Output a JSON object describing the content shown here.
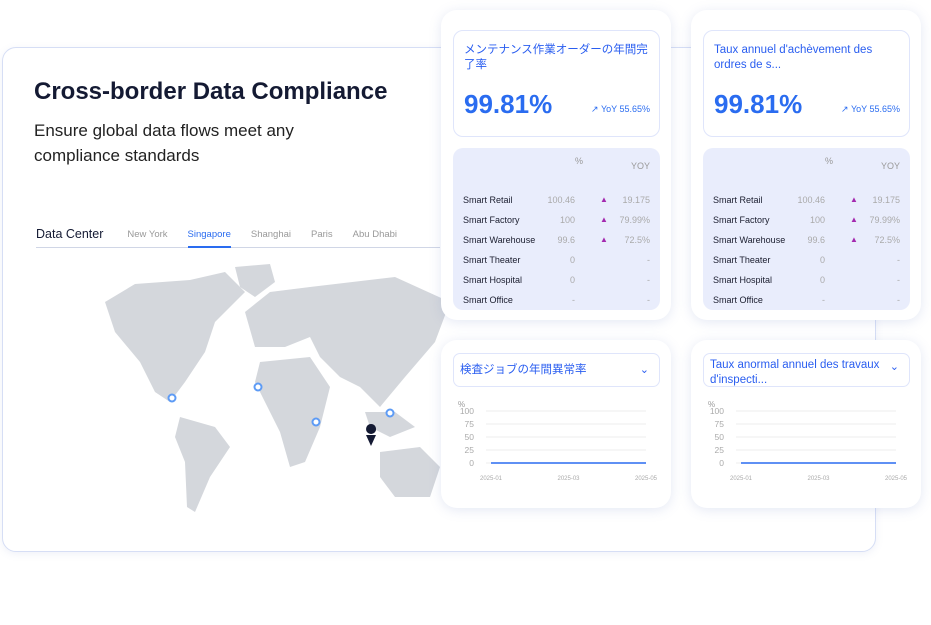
{
  "hero": {
    "title": "Cross-border Data Compliance",
    "subtitle": "Ensure global data flows meet any compliance standards"
  },
  "tabs": {
    "heading": "Data Center",
    "items": [
      "New York",
      "Singapore",
      "Shanghai",
      "Paris",
      "Abu Dhabi"
    ],
    "active": "Singapore"
  },
  "colors": {
    "accent": "#2a6cf0",
    "up_arrow": "#a42aaf",
    "map": "#d4d7dc"
  },
  "kpi_cards": [
    {
      "title": "メンテナンス作業オーダーの年間完了率",
      "value": "99.81%",
      "yoy": "YoY 55.65%",
      "col_pct": "%",
      "col_yoy": "YOY",
      "rows": [
        {
          "name": "Smart Retail",
          "pct": "100.46",
          "up": true,
          "yoy": "19.175"
        },
        {
          "name": "Smart Factory",
          "pct": "100",
          "up": true,
          "yoy": "79.99%"
        },
        {
          "name": "Smart Warehouse",
          "pct": "99.6",
          "up": true,
          "yoy": "72.5%"
        },
        {
          "name": "Smart Theater",
          "pct": "0",
          "up": false,
          "yoy": "-"
        },
        {
          "name": "Smart Hospital",
          "pct": "0",
          "up": false,
          "yoy": "-"
        },
        {
          "name": "Smart Office",
          "pct": "-",
          "up": false,
          "yoy": "-"
        }
      ]
    },
    {
      "title": "Taux annuel d'achèvement des ordres de s...",
      "value": "99.81%",
      "yoy": "YoY 55.65%",
      "col_pct": "%",
      "col_yoy": "YOY",
      "rows": [
        {
          "name": "Smart Retail",
          "pct": "100.46",
          "up": true,
          "yoy": "19.175"
        },
        {
          "name": "Smart Factory",
          "pct": "100",
          "up": true,
          "yoy": "79.99%"
        },
        {
          "name": "Smart Warehouse",
          "pct": "99.6",
          "up": true,
          "yoy": "72.5%"
        },
        {
          "name": "Smart Theater",
          "pct": "0",
          "up": false,
          "yoy": "-"
        },
        {
          "name": "Smart Hospital",
          "pct": "0",
          "up": false,
          "yoy": "-"
        },
        {
          "name": "Smart Office",
          "pct": "-",
          "up": false,
          "yoy": "-"
        }
      ]
    }
  ],
  "chart_cards": [
    {
      "select": "検査ジョブの年間異常率",
      "unit": "%",
      "yticks": [
        "100",
        "75",
        "50",
        "25",
        "0"
      ],
      "xticks": [
        "2025-01",
        "2025-03",
        "2025-05"
      ],
      "series": [
        0,
        0,
        0
      ]
    },
    {
      "select": "Taux anormal annuel des travaux d'inspecti...",
      "unit": "%",
      "yticks": [
        "100",
        "75",
        "50",
        "25",
        "0"
      ],
      "xticks": [
        "2025-01",
        "2025-03",
        "2025-05"
      ],
      "series": [
        0,
        0,
        0
      ]
    }
  ]
}
